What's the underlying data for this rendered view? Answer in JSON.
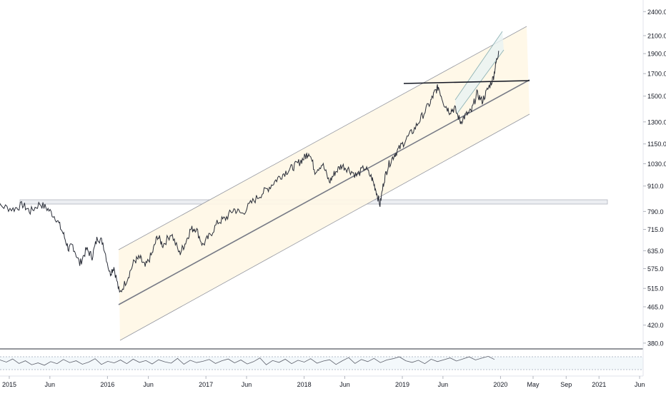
{
  "chart_data": {
    "type": "line",
    "scale": "log",
    "ylim": [
      355,
      2560
    ],
    "xlim": [
      "2014-11-01",
      "2021-06-30"
    ],
    "colors": {
      "price": "#2a2e39",
      "channel_fill": "#fff7e6",
      "channel_line": "#9598a1",
      "support_line": "#787b86",
      "breakout_line": "#131722",
      "zone_fill": "#eceef2",
      "zone_border": "#b2b5be",
      "axis_text": "#131722",
      "rsi_line": "#5d606b",
      "rsi_band": "#f3f8fb",
      "rsi_guide": "#9fa8b8"
    },
    "y_ticks": [
      "2400.0",
      "2100.0",
      "1900.0",
      "1700.0",
      "1500.0",
      "1300.0",
      "1150.0",
      "1030.0",
      "910.0",
      "790.0",
      "715.0",
      "635.0",
      "575.0",
      "515.0",
      "465.0",
      "420.0",
      "380.0"
    ],
    "x_ticks": [
      {
        "date": "2015-01-01",
        "label": "2015"
      },
      {
        "date": "2015-06-01",
        "label": "Jun"
      },
      {
        "date": "2016-01-01",
        "label": "2016"
      },
      {
        "date": "2016-06-01",
        "label": "Jun"
      },
      {
        "date": "2017-01-01",
        "label": "2017"
      },
      {
        "date": "2017-06-01",
        "label": "Jun"
      },
      {
        "date": "2018-01-01",
        "label": "2018"
      },
      {
        "date": "2018-06-01",
        "label": "Jun"
      },
      {
        "date": "2019-01-01",
        "label": "2019"
      },
      {
        "date": "2019-06-01",
        "label": "Jun"
      },
      {
        "date": "2020-01-01",
        "label": "2020"
      },
      {
        "date": "2020-05-01",
        "label": "May"
      },
      {
        "date": "2020-09-01",
        "label": "Sep"
      },
      {
        "date": "2021-01-01",
        "label": "2021"
      },
      {
        "date": "2021-06-01",
        "label": "Jun"
      }
    ],
    "series": [
      {
        "x": [
          "2014-11-01",
          "2014-12-01",
          "2015-01-15",
          "2015-02-20",
          "2015-03-20",
          "2015-04-25",
          "2015-05-25",
          "2015-06-25",
          "2015-07-20",
          "2015-08-10",
          "2015-08-25",
          "2015-09-20",
          "2015-10-15",
          "2015-11-05",
          "2015-11-25",
          "2015-12-15",
          "2016-01-10",
          "2016-01-25",
          "2016-02-15",
          "2016-03-15",
          "2016-04-10",
          "2016-05-01",
          "2016-05-20",
          "2016-06-15",
          "2016-07-05",
          "2016-07-25",
          "2016-08-25",
          "2016-09-25",
          "2016-10-15",
          "2016-11-05",
          "2016-11-25",
          "2016-12-20",
          "2017-01-15",
          "2017-02-15",
          "2017-03-15",
          "2017-04-15",
          "2017-05-15",
          "2017-06-20",
          "2017-07-25",
          "2017-08-25",
          "2017-09-25",
          "2017-10-25",
          "2017-11-20",
          "2017-12-15",
          "2018-01-05",
          "2018-01-20",
          "2018-02-10",
          "2018-03-10",
          "2018-04-05",
          "2018-04-25",
          "2018-05-20",
          "2018-06-15",
          "2018-07-15",
          "2018-08-15",
          "2018-09-10",
          "2018-09-25",
          "2018-10-10",
          "2018-10-25",
          "2018-11-10",
          "2018-12-01",
          "2018-12-20",
          "2019-01-15",
          "2019-02-15",
          "2019-03-15",
          "2019-04-15",
          "2019-05-01",
          "2019-05-15",
          "2019-06-05",
          "2019-06-25",
          "2019-07-15",
          "2019-08-05",
          "2019-08-25",
          "2019-09-15",
          "2019-10-05",
          "2019-10-25",
          "2019-11-15",
          "2019-12-05",
          "2019-12-15",
          "2019-12-25"
        ],
        "values": [
          790,
          815,
          800,
          820,
          790,
          825,
          800,
          760,
          700,
          640,
          655,
          590,
          640,
          615,
          685,
          665,
          560,
          580,
          500,
          545,
          600,
          610,
          580,
          625,
          690,
          655,
          700,
          625,
          660,
          715,
          720,
          655,
          690,
          745,
          760,
          800,
          780,
          830,
          870,
          905,
          950,
          985,
          1010,
          1040,
          1070,
          1100,
          990,
          1030,
          930,
          980,
          1020,
          1000,
          965,
          1010,
          950,
          890,
          820,
          940,
          1020,
          1080,
          1120,
          1180,
          1250,
          1340,
          1450,
          1530,
          1580,
          1440,
          1380,
          1400,
          1300,
          1350,
          1380,
          1520,
          1460,
          1560,
          1660,
          1800,
          1930
        ]
      }
    ],
    "rsi": [
      58,
      50,
      62,
      45,
      55,
      40,
      47,
      38,
      52,
      44,
      60,
      48,
      55,
      42,
      50,
      63,
      41,
      53,
      47,
      58,
      44,
      61,
      49,
      56,
      43,
      59,
      51,
      46,
      64,
      42,
      57,
      48,
      53,
      60,
      45,
      55,
      62,
      47,
      58,
      43,
      52,
      66,
      40,
      56,
      49,
      61,
      44,
      57,
      50,
      63,
      46,
      54,
      59,
      41,
      55,
      67,
      45,
      60,
      52,
      64,
      48,
      58,
      63,
      70,
      55,
      49,
      57,
      44,
      61,
      52,
      59,
      66,
      54,
      62,
      70,
      58,
      65,
      72,
      60
    ]
  }
}
